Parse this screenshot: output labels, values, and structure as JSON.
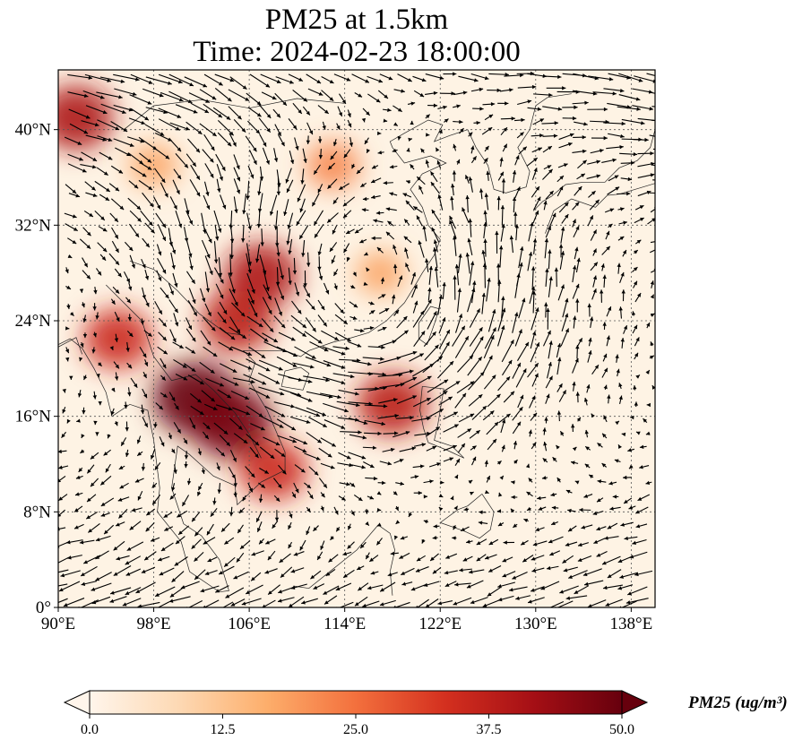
{
  "title": {
    "line1": "PM25 at 1.5km",
    "line2": "Time: 2024-02-23 18:00:00"
  },
  "map": {
    "lon_range": [
      90,
      140
    ],
    "lat_range": [
      0,
      45
    ],
    "lon_ticks": [
      "90°E",
      "98°E",
      "106°E",
      "114°E",
      "122°E",
      "130°E",
      "138°E"
    ],
    "lat_ticks": [
      "0°",
      "8°N",
      "16°N",
      "24°N",
      "32°N",
      "40°N"
    ],
    "gridlines": "dotted",
    "field": "PM25",
    "hotspots": [
      {
        "lon": 101.5,
        "lat": 17.5,
        "value": 50
      },
      {
        "lon": 104.5,
        "lat": 15.5,
        "value": 48
      },
      {
        "lon": 107.0,
        "lat": 27.8,
        "value": 40
      },
      {
        "lon": 105.0,
        "lat": 24.0,
        "value": 38
      },
      {
        "lon": 95.0,
        "lat": 22.5,
        "value": 35
      },
      {
        "lon": 91.5,
        "lat": 41.0,
        "value": 40
      },
      {
        "lon": 108.0,
        "lat": 11.5,
        "value": 35
      },
      {
        "lon": 118.0,
        "lat": 17.0,
        "value": 38
      },
      {
        "lon": 113.0,
        "lat": 37.0,
        "value": 22
      },
      {
        "lon": 98.0,
        "lat": 37.0,
        "value": 18
      },
      {
        "lon": 117.0,
        "lat": 28.0,
        "value": 18
      }
    ]
  },
  "colorbar": {
    "label": "PM25 (ug/m³)",
    "min": 0.0,
    "max": 50.0,
    "ticks": [
      "0.0",
      "12.5",
      "25.0",
      "37.5",
      "50.0"
    ],
    "colors": [
      "#fff5eb",
      "#fdd9b4",
      "#fdae6b",
      "#f3703d",
      "#d4301f",
      "#a50f15",
      "#67000d"
    ],
    "extend": "both"
  },
  "vector_color": "#000000"
}
